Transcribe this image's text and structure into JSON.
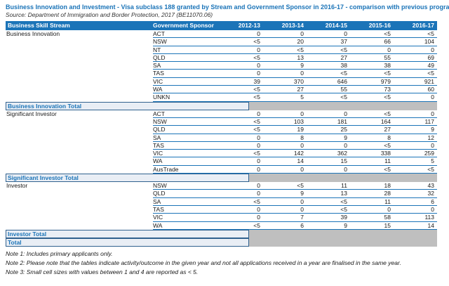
{
  "title": "Business Innovation and Investment - Visa subclass 188 granted by Stream and Government Sponsor in 2016-17 - comparison with previous programme year",
  "source": "Source: Department of Immigration and Border Protection, 2017 (BE11070.06)",
  "colors": {
    "accent_blue": "#1B74B8",
    "total_row_bg": "#E9EEF5",
    "total_row_border": "#30618E",
    "suppressed_gray": "#BFBFBF",
    "header_text": "#FFFFFF"
  },
  "table": {
    "columns": [
      "Business Skill Stream",
      "Government Sponsor",
      "2012-13",
      "2013-14",
      "2014-15",
      "2015-16",
      "2016-17"
    ],
    "sections": [
      {
        "stream": "Business Innovation",
        "total_label": "Business Innovation Total",
        "rows": [
          {
            "sponsor": "ACT",
            "values": [
              "0",
              "0",
              "0",
              "<5",
              "<5"
            ]
          },
          {
            "sponsor": "NSW",
            "values": [
              "<5",
              "20",
              "37",
              "66",
              "104"
            ]
          },
          {
            "sponsor": "NT",
            "values": [
              "0",
              "<5",
              "<5",
              "0",
              "0"
            ]
          },
          {
            "sponsor": "QLD",
            "values": [
              "<5",
              "13",
              "27",
              "55",
              "69"
            ]
          },
          {
            "sponsor": "SA",
            "values": [
              "0",
              "9",
              "38",
              "38",
              "49"
            ]
          },
          {
            "sponsor": "TAS",
            "values": [
              "0",
              "0",
              "<5",
              "<5",
              "<5"
            ]
          },
          {
            "sponsor": "VIC",
            "values": [
              "39",
              "370",
              "646",
              "979",
              "921"
            ]
          },
          {
            "sponsor": "WA",
            "values": [
              "<5",
              "27",
              "55",
              "73",
              "60"
            ]
          },
          {
            "sponsor": "UNKN",
            "values": [
              "<5",
              "5",
              "<5",
              "<5",
              "0"
            ]
          }
        ]
      },
      {
        "stream": "Significant Investor",
        "total_label": "Significant Investor Total",
        "rows": [
          {
            "sponsor": "ACT",
            "values": [
              "0",
              "0",
              "0",
              "<5",
              "0"
            ]
          },
          {
            "sponsor": "NSW",
            "values": [
              "<5",
              "103",
              "181",
              "164",
              "117"
            ]
          },
          {
            "sponsor": "QLD",
            "values": [
              "<5",
              "19",
              "25",
              "27",
              "9"
            ]
          },
          {
            "sponsor": "SA",
            "values": [
              "0",
              "8",
              "9",
              "8",
              "12"
            ]
          },
          {
            "sponsor": "TAS",
            "values": [
              "0",
              "0",
              "0",
              "<5",
              "0"
            ]
          },
          {
            "sponsor": "VIC",
            "values": [
              "<5",
              "142",
              "362",
              "338",
              "259"
            ]
          },
          {
            "sponsor": "WA",
            "values": [
              "0",
              "14",
              "15",
              "11",
              "5"
            ]
          },
          {
            "sponsor": "AusTrade",
            "values": [
              "0",
              "0",
              "0",
              "<5",
              "<5"
            ]
          }
        ]
      },
      {
        "stream": "Investor",
        "total_label": "Investor Total",
        "rows": [
          {
            "sponsor": "NSW",
            "values": [
              "0",
              "<5",
              "11",
              "18",
              "43"
            ]
          },
          {
            "sponsor": "QLD",
            "values": [
              "0",
              "9",
              "13",
              "28",
              "32"
            ]
          },
          {
            "sponsor": "SA",
            "values": [
              "<5",
              "0",
              "<5",
              "11",
              "6"
            ]
          },
          {
            "sponsor": "TAS",
            "values": [
              "0",
              "0",
              "<5",
              "0",
              "0"
            ]
          },
          {
            "sponsor": "VIC",
            "values": [
              "0",
              "7",
              "39",
              "58",
              "113"
            ]
          },
          {
            "sponsor": "WA",
            "values": [
              "<5",
              "6",
              "9",
              "15",
              "14"
            ]
          }
        ]
      }
    ],
    "grand_total_label": "Total"
  },
  "notes": [
    "Note 1: Includes primary applicants only.",
    "Note 2: Please note that the tables indicate activity/outcome in the given year and not all applications received in a year are finalised in the same year.",
    "Note 3: Small cell sizes with values between 1 and 4 are reported as < 5."
  ]
}
